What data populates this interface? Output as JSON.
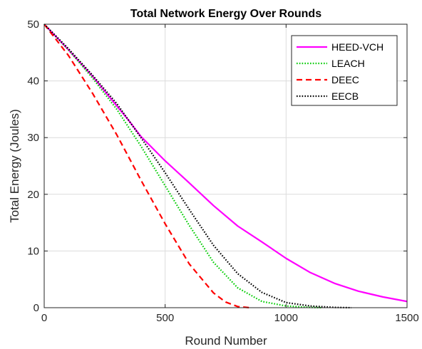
{
  "chart_data": {
    "type": "line",
    "title": "Total Network Energy Over Rounds",
    "xlabel": "Round Number",
    "ylabel": "Total Energy (Joules)",
    "xlim": [
      0,
      1500
    ],
    "ylim": [
      0,
      50
    ],
    "xticks": [
      0,
      500,
      1000,
      1500
    ],
    "yticks": [
      0,
      10,
      20,
      30,
      40,
      50
    ],
    "grid": true,
    "legend_position": "top-right",
    "series": [
      {
        "name": "HEED-VCH",
        "color": "#ff00ff",
        "style": "solid",
        "points": [
          [
            0,
            50
          ],
          [
            100,
            45.5
          ],
          [
            200,
            40.8
          ],
          [
            300,
            35.6
          ],
          [
            350,
            33.0
          ],
          [
            400,
            30.2
          ],
          [
            500,
            25.9
          ],
          [
            600,
            22.0
          ],
          [
            700,
            18.0
          ],
          [
            800,
            14.4
          ],
          [
            900,
            11.6
          ],
          [
            1000,
            8.7
          ],
          [
            1100,
            6.2
          ],
          [
            1200,
            4.3
          ],
          [
            1300,
            2.9
          ],
          [
            1400,
            1.9
          ],
          [
            1500,
            1.1
          ]
        ]
      },
      {
        "name": "LEACH",
        "color": "#00cc00",
        "style": "dotted",
        "points": [
          [
            0,
            50
          ],
          [
            100,
            45.5
          ],
          [
            200,
            40.5
          ],
          [
            300,
            35.0
          ],
          [
            400,
            28.5
          ],
          [
            500,
            21.5
          ],
          [
            600,
            14.5
          ],
          [
            700,
            8.0
          ],
          [
            800,
            3.5
          ],
          [
            900,
            1.1
          ],
          [
            1000,
            0.3
          ],
          [
            1100,
            0.05
          ],
          [
            1150,
            0
          ]
        ]
      },
      {
        "name": "DEEC",
        "color": "#ff0000",
        "style": "dashed",
        "points": [
          [
            0,
            50
          ],
          [
            100,
            44.5
          ],
          [
            200,
            37.8
          ],
          [
            300,
            30.5
          ],
          [
            400,
            22.5
          ],
          [
            500,
            14.8
          ],
          [
            600,
            7.7
          ],
          [
            700,
            2.6
          ],
          [
            750,
            1.0
          ],
          [
            800,
            0.2
          ],
          [
            850,
            0
          ]
        ]
      },
      {
        "name": "EECB",
        "color": "#000000",
        "style": "dotted",
        "points": [
          [
            0,
            50
          ],
          [
            100,
            45.7
          ],
          [
            200,
            41.0
          ],
          [
            300,
            36.0
          ],
          [
            400,
            30.0
          ],
          [
            500,
            23.8
          ],
          [
            600,
            17.3
          ],
          [
            700,
            11.0
          ],
          [
            800,
            6.0
          ],
          [
            900,
            2.7
          ],
          [
            1000,
            0.9
          ],
          [
            1100,
            0.3
          ],
          [
            1200,
            0.05
          ],
          [
            1270,
            0
          ]
        ]
      }
    ]
  }
}
